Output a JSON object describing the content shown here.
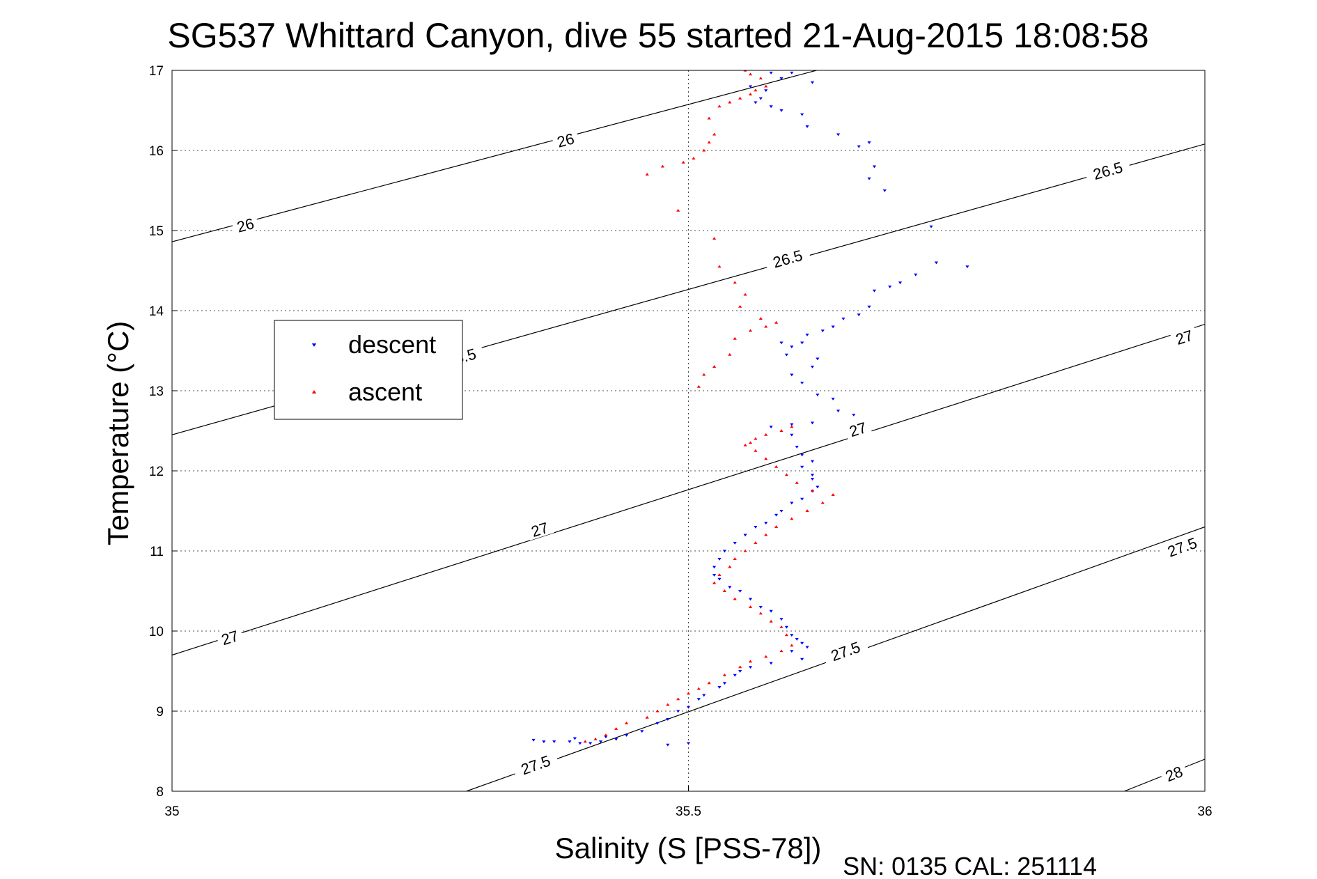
{
  "chart_data": {
    "type": "scatter",
    "title": "SG537 Whittard Canyon, dive 55 started 21-Aug-2015 18:08:58",
    "xlabel": "Salinity (S [PSS-78])",
    "ylabel": "Temperature (°C)",
    "xlim": [
      35,
      36
    ],
    "ylim": [
      8,
      17
    ],
    "xticks": [
      "35",
      "35.5",
      "36"
    ],
    "yticks": [
      "8",
      "9",
      "10",
      "11",
      "12",
      "13",
      "14",
      "15",
      "16",
      "17"
    ],
    "grid": true,
    "legend_placement": "middle-left",
    "footnote": "SN: 0135  CAL: 251114",
    "isopycnals": [
      {
        "label": "26",
        "points": [
          [
            35.0,
            14.86
          ],
          [
            35.624,
            17.0
          ]
        ],
        "label_positions": [
          [
            35.071,
            15.07
          ],
          [
            35.381,
            16.13
          ]
        ]
      },
      {
        "label": "26.5",
        "points": [
          [
            35.0,
            12.45
          ],
          [
            36.0,
            16.08
          ]
        ],
        "label_positions": [
          [
            35.28,
            13.42
          ],
          [
            35.596,
            14.65
          ],
          [
            35.906,
            15.75
          ]
        ]
      },
      {
        "label": "27",
        "points": [
          [
            35.0,
            9.7
          ],
          [
            36.0,
            13.83
          ]
        ],
        "label_positions": [
          [
            35.056,
            9.92
          ],
          [
            35.356,
            11.27
          ],
          [
            35.664,
            12.52
          ],
          [
            35.98,
            13.67
          ]
        ]
      },
      {
        "label": "27.5",
        "points": [
          [
            35.285,
            8.0
          ],
          [
            36.0,
            11.3
          ]
        ],
        "label_positions": [
          [
            35.352,
            8.33
          ],
          [
            35.652,
            9.75
          ],
          [
            35.978,
            11.05
          ]
        ]
      },
      {
        "label": "28",
        "points": [
          [
            35.922,
            8.0
          ],
          [
            36.0,
            8.4
          ]
        ],
        "label_positions": [
          [
            35.97,
            8.22
          ]
        ]
      }
    ],
    "series": [
      {
        "name": "descent",
        "color": "#0000ff",
        "marker": "triangle-down",
        "points": [
          [
            35.555,
            17.0
          ],
          [
            35.58,
            16.97
          ],
          [
            35.59,
            16.9
          ],
          [
            35.6,
            16.97
          ],
          [
            35.62,
            16.85
          ],
          [
            35.575,
            16.75
          ],
          [
            35.56,
            16.8
          ],
          [
            35.565,
            16.6
          ],
          [
            35.58,
            16.55
          ],
          [
            35.57,
            16.65
          ],
          [
            35.59,
            16.5
          ],
          [
            35.61,
            16.45
          ],
          [
            35.615,
            16.3
          ],
          [
            35.645,
            16.2
          ],
          [
            35.665,
            16.05
          ],
          [
            35.675,
            16.1
          ],
          [
            35.68,
            15.8
          ],
          [
            35.675,
            15.65
          ],
          [
            35.69,
            15.5
          ],
          [
            35.735,
            15.05
          ],
          [
            35.74,
            14.6
          ],
          [
            35.77,
            14.55
          ],
          [
            35.72,
            14.45
          ],
          [
            35.705,
            14.35
          ],
          [
            35.695,
            14.3
          ],
          [
            35.68,
            14.25
          ],
          [
            35.675,
            14.05
          ],
          [
            35.665,
            13.95
          ],
          [
            35.65,
            13.9
          ],
          [
            35.64,
            13.8
          ],
          [
            35.63,
            13.75
          ],
          [
            35.615,
            13.7
          ],
          [
            35.61,
            13.6
          ],
          [
            35.6,
            13.55
          ],
          [
            35.59,
            13.6
          ],
          [
            35.595,
            13.45
          ],
          [
            35.625,
            13.4
          ],
          [
            35.62,
            13.3
          ],
          [
            35.6,
            13.2
          ],
          [
            35.61,
            13.1
          ],
          [
            35.625,
            12.95
          ],
          [
            35.64,
            12.9
          ],
          [
            35.645,
            12.75
          ],
          [
            35.66,
            12.7
          ],
          [
            35.62,
            12.6
          ],
          [
            35.6,
            12.58
          ],
          [
            35.58,
            12.55
          ],
          [
            35.6,
            12.45
          ],
          [
            35.605,
            12.3
          ],
          [
            35.61,
            12.2
          ],
          [
            35.62,
            12.12
          ],
          [
            35.61,
            12.05
          ],
          [
            35.62,
            11.95
          ],
          [
            35.62,
            11.9
          ],
          [
            35.625,
            11.8
          ],
          [
            35.62,
            11.75
          ],
          [
            35.61,
            11.65
          ],
          [
            35.6,
            11.6
          ],
          [
            35.59,
            11.5
          ],
          [
            35.585,
            11.45
          ],
          [
            35.575,
            11.35
          ],
          [
            35.565,
            11.3
          ],
          [
            35.555,
            11.2
          ],
          [
            35.545,
            11.1
          ],
          [
            35.535,
            11.0
          ],
          [
            35.53,
            10.9
          ],
          [
            35.525,
            10.8
          ],
          [
            35.525,
            10.7
          ],
          [
            35.53,
            10.65
          ],
          [
            35.54,
            10.55
          ],
          [
            35.55,
            10.5
          ],
          [
            35.56,
            10.4
          ],
          [
            35.57,
            10.3
          ],
          [
            35.58,
            10.25
          ],
          [
            35.59,
            10.15
          ],
          [
            35.595,
            10.05
          ],
          [
            35.6,
            9.95
          ],
          [
            35.605,
            9.9
          ],
          [
            35.61,
            9.85
          ],
          [
            35.615,
            9.8
          ],
          [
            35.6,
            9.75
          ],
          [
            35.61,
            9.65
          ],
          [
            35.58,
            9.6
          ],
          [
            35.56,
            9.55
          ],
          [
            35.55,
            9.5
          ],
          [
            35.545,
            9.45
          ],
          [
            35.535,
            9.35
          ],
          [
            35.53,
            9.3
          ],
          [
            35.515,
            9.2
          ],
          [
            35.51,
            9.15
          ],
          [
            35.5,
            9.05
          ],
          [
            35.49,
            9.0
          ],
          [
            35.48,
            8.9
          ],
          [
            35.47,
            8.85
          ],
          [
            35.455,
            8.75
          ],
          [
            35.44,
            8.7
          ],
          [
            35.43,
            8.65
          ],
          [
            35.415,
            8.62
          ],
          [
            35.405,
            8.6
          ],
          [
            35.395,
            8.6
          ],
          [
            35.385,
            8.62
          ],
          [
            35.37,
            8.62
          ],
          [
            35.39,
            8.66
          ],
          [
            35.42,
            8.68
          ],
          [
            35.35,
            8.64
          ],
          [
            35.36,
            8.62
          ],
          [
            35.5,
            8.6
          ],
          [
            35.48,
            8.58
          ]
        ]
      },
      {
        "name": "ascent",
        "color": "#ff0000",
        "marker": "triangle-up",
        "points": [
          [
            35.4,
            8.62
          ],
          [
            35.41,
            8.65
          ],
          [
            35.42,
            8.7
          ],
          [
            35.43,
            8.78
          ],
          [
            35.44,
            8.85
          ],
          [
            35.46,
            8.92
          ],
          [
            35.47,
            9.0
          ],
          [
            35.48,
            9.08
          ],
          [
            35.49,
            9.15
          ],
          [
            35.5,
            9.22
          ],
          [
            35.51,
            9.28
          ],
          [
            35.52,
            9.35
          ],
          [
            35.535,
            9.45
          ],
          [
            35.55,
            9.55
          ],
          [
            35.56,
            9.62
          ],
          [
            35.575,
            9.68
          ],
          [
            35.59,
            9.75
          ],
          [
            35.6,
            9.82
          ],
          [
            35.595,
            9.95
          ],
          [
            35.59,
            10.05
          ],
          [
            35.58,
            10.12
          ],
          [
            35.57,
            10.22
          ],
          [
            35.56,
            10.3
          ],
          [
            35.545,
            10.4
          ],
          [
            35.535,
            10.5
          ],
          [
            35.525,
            10.6
          ],
          [
            35.53,
            10.7
          ],
          [
            35.54,
            10.8
          ],
          [
            35.545,
            10.9
          ],
          [
            35.555,
            11.0
          ],
          [
            35.565,
            11.1
          ],
          [
            35.575,
            11.2
          ],
          [
            35.585,
            11.3
          ],
          [
            35.6,
            11.4
          ],
          [
            35.615,
            11.5
          ],
          [
            35.63,
            11.6
          ],
          [
            35.64,
            11.7
          ],
          [
            35.62,
            11.75
          ],
          [
            35.605,
            11.85
          ],
          [
            35.595,
            11.95
          ],
          [
            35.585,
            12.05
          ],
          [
            35.575,
            12.15
          ],
          [
            35.565,
            12.25
          ],
          [
            35.56,
            12.35
          ],
          [
            35.575,
            12.45
          ],
          [
            35.59,
            12.5
          ],
          [
            35.6,
            12.55
          ],
          [
            35.565,
            12.4
          ],
          [
            35.555,
            12.32
          ],
          [
            35.51,
            13.05
          ],
          [
            35.515,
            13.2
          ],
          [
            35.525,
            13.3
          ],
          [
            35.54,
            13.45
          ],
          [
            35.545,
            13.65
          ],
          [
            35.56,
            13.75
          ],
          [
            35.575,
            13.8
          ],
          [
            35.585,
            13.85
          ],
          [
            35.57,
            13.9
          ],
          [
            35.55,
            14.05
          ],
          [
            35.555,
            14.2
          ],
          [
            35.545,
            14.35
          ],
          [
            35.53,
            14.55
          ],
          [
            35.525,
            14.9
          ],
          [
            35.49,
            15.25
          ],
          [
            35.46,
            15.7
          ],
          [
            35.475,
            15.8
          ],
          [
            35.495,
            15.85
          ],
          [
            35.505,
            15.9
          ],
          [
            35.515,
            16.0
          ],
          [
            35.52,
            16.1
          ],
          [
            35.525,
            16.2
          ],
          [
            35.52,
            16.4
          ],
          [
            35.53,
            16.55
          ],
          [
            35.54,
            16.6
          ],
          [
            35.55,
            16.65
          ],
          [
            35.56,
            16.7
          ],
          [
            35.565,
            16.75
          ],
          [
            35.575,
            16.8
          ],
          [
            35.57,
            16.9
          ],
          [
            35.56,
            16.95
          ],
          [
            35.555,
            17.0
          ]
        ]
      }
    ]
  }
}
